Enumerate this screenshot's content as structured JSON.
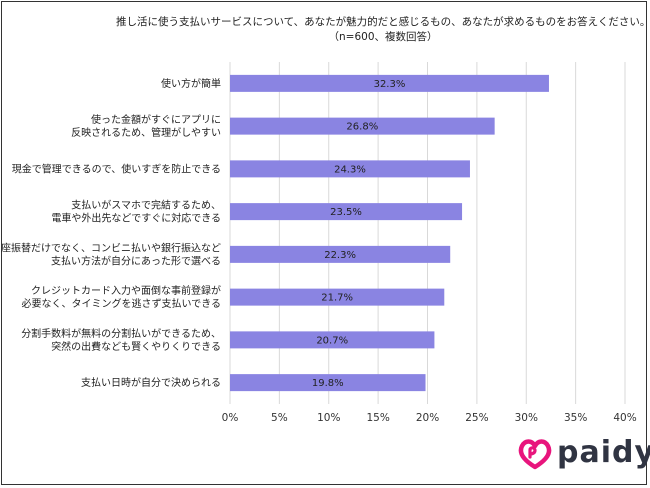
{
  "chart_data": {
    "type": "bar",
    "orientation": "horizontal",
    "title": "推し活に使う支払いサービスについて、あなたが魅力的だと感じるもの、あなたが求めるものをお答えください。",
    "subtitle": "（n=600、複数回答）",
    "categories": [
      [
        "使い方が簡単"
      ],
      [
        "使った金額がすぐにアプリに",
        "反映されるため、管理がしやすい"
      ],
      [
        "現金で管理できるので、使いすぎを防止できる"
      ],
      [
        "支払いがスマホで完結するため、",
        "電車や外出先などですぐに対応できる"
      ],
      [
        "口座振替だけでなく、コンビニ払いや銀行振込など",
        "支払い方法が自分にあった形で選べる"
      ],
      [
        "クレジットカード入力や面倒な事前登録が",
        "必要なく、タイミングを逃さず支払いできる"
      ],
      [
        "分割手数料が無料の分割払いができるため、",
        "突然の出費なども賢くやりくりできる"
      ],
      [
        "支払い日時が自分で決められる"
      ]
    ],
    "values": [
      32.3,
      26.8,
      24.3,
      23.5,
      22.3,
      21.7,
      20.7,
      19.8
    ],
    "value_labels": [
      "32.3%",
      "26.8%",
      "24.3%",
      "23.5%",
      "22.3%",
      "21.7%",
      "20.7%",
      "19.8%"
    ],
    "xlim": [
      0,
      40
    ],
    "xticks": [
      0,
      5,
      10,
      15,
      20,
      25,
      30,
      35,
      40
    ],
    "xtick_labels": [
      "0%",
      "5%",
      "10%",
      "15%",
      "20%",
      "25%",
      "30%",
      "35%",
      "40%"
    ],
    "grid": true,
    "bar_color": "#8a84e2",
    "grid_color": "#d9d9d9"
  },
  "logo": {
    "text": "paidy",
    "color": "#e8157d"
  }
}
